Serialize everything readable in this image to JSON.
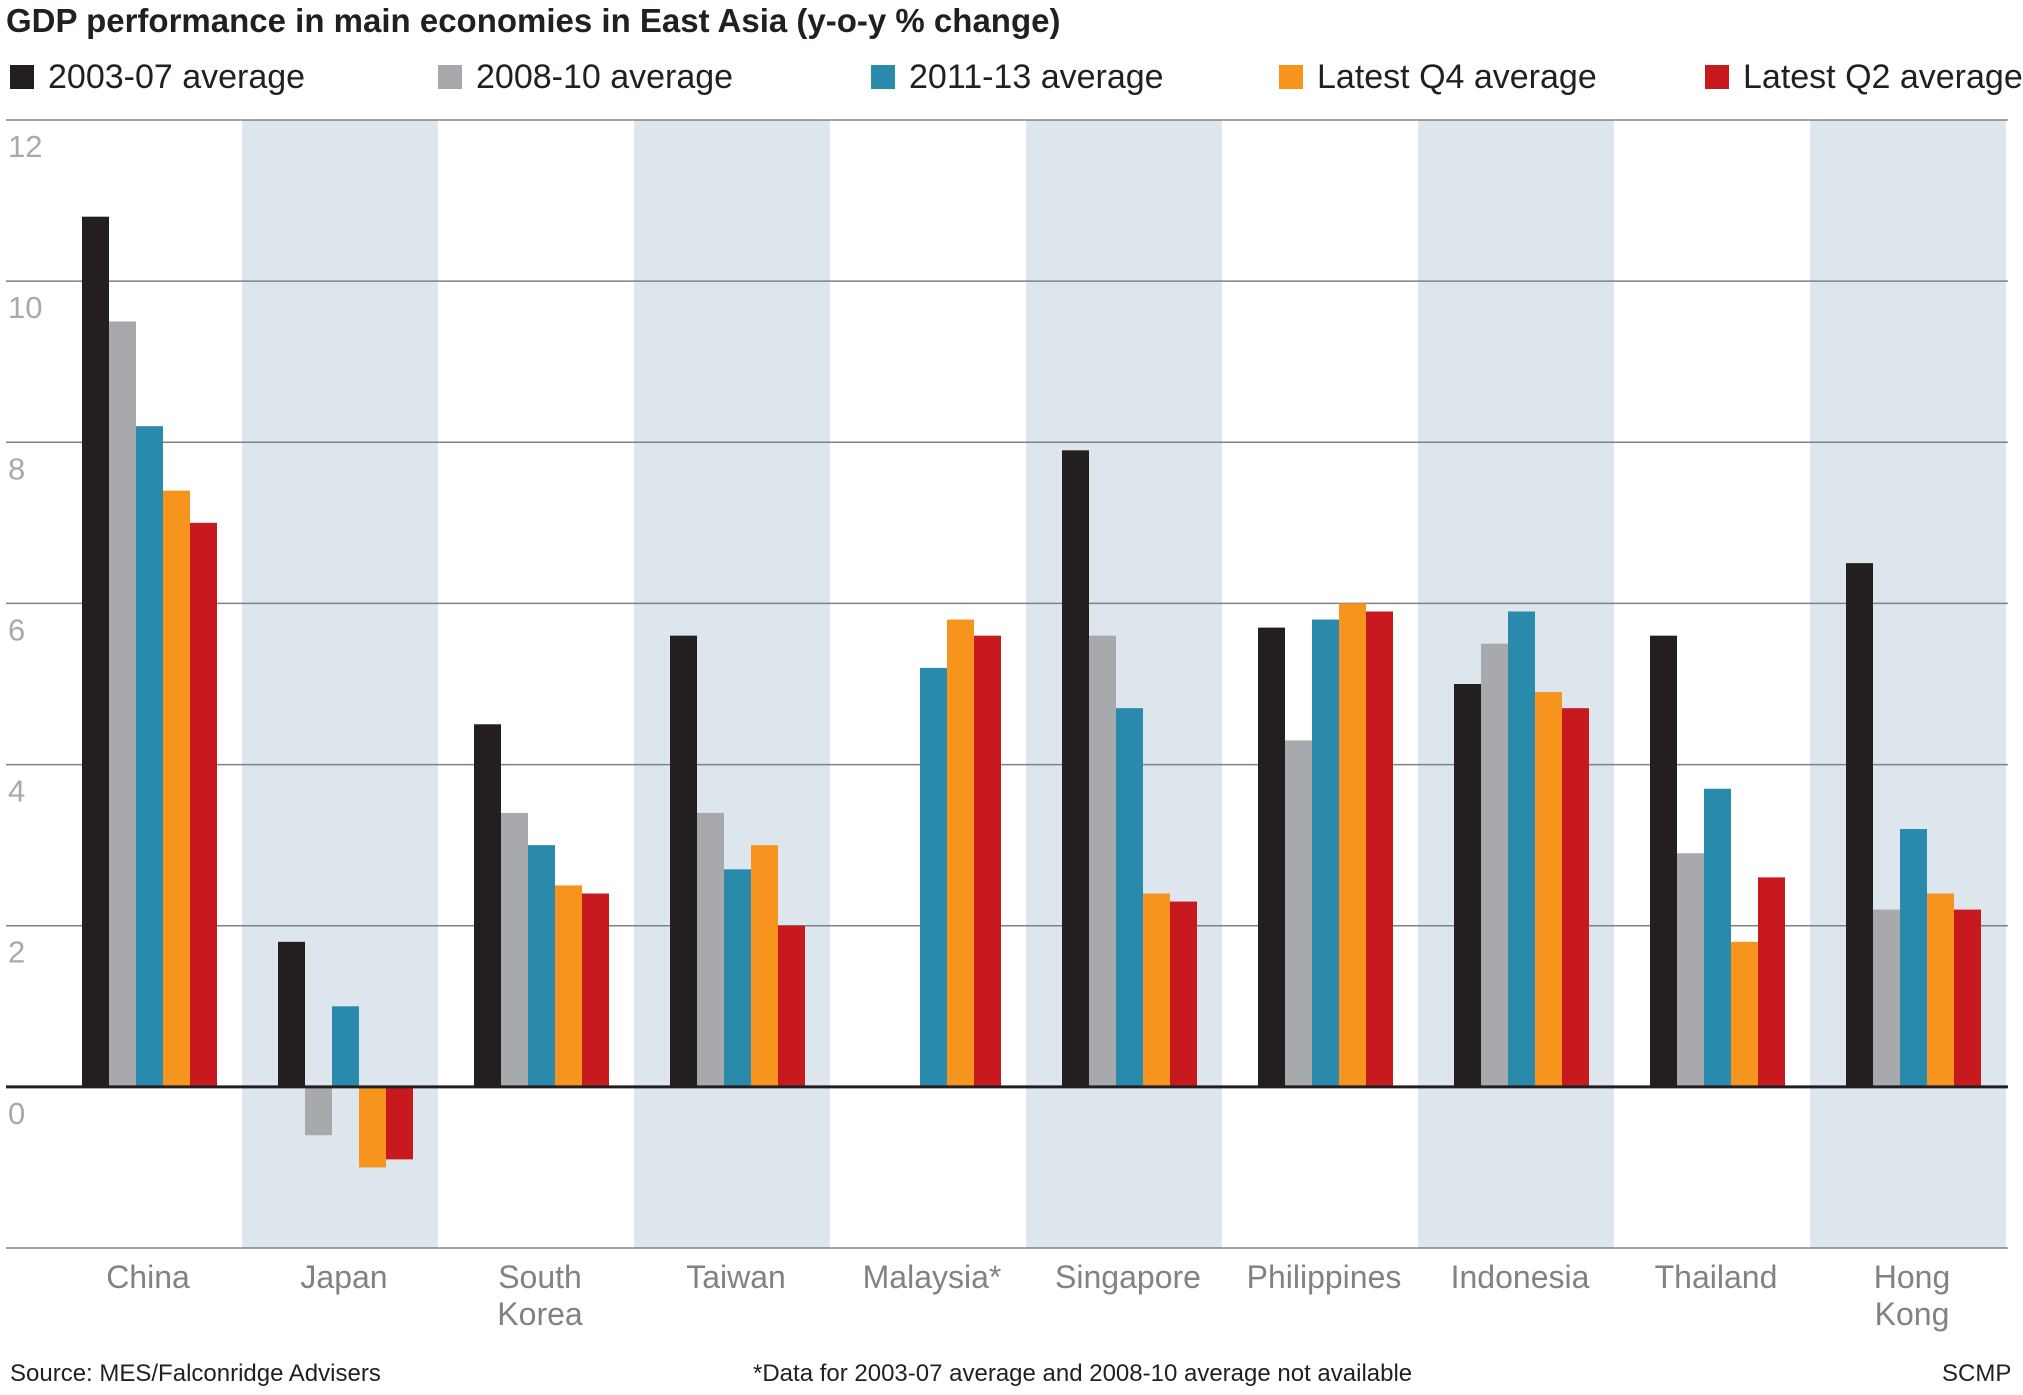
{
  "chart_data": {
    "type": "bar",
    "title": "GDP performance in main economies in East Asia (y-o-y % change)",
    "categories": [
      "China",
      "Japan",
      "South Korea",
      "Taiwan",
      "Malaysia*",
      "Singapore",
      "Philippines",
      "Indonesia",
      "Thailand",
      "Hong Kong"
    ],
    "category_lines": [
      [
        "China"
      ],
      [
        "Japan"
      ],
      [
        "South",
        "Korea"
      ],
      [
        "Taiwan"
      ],
      [
        "Malaysia*"
      ],
      [
        "Singapore"
      ],
      [
        "Philippines"
      ],
      [
        "Indonesia"
      ],
      [
        "Thailand"
      ],
      [
        "Hong",
        "Kong"
      ]
    ],
    "series": [
      {
        "name": "2003-07 average",
        "color": "#231f20",
        "values": [
          10.8,
          1.8,
          4.5,
          5.6,
          null,
          7.9,
          5.7,
          5.0,
          5.6,
          6.5
        ]
      },
      {
        "name": "2008-10 average",
        "color": "#a7a9ac",
        "values": [
          9.5,
          -0.6,
          3.4,
          3.4,
          null,
          5.6,
          4.3,
          5.5,
          2.9,
          2.2
        ]
      },
      {
        "name": "2011-13 average",
        "color": "#2a8aab",
        "values": [
          8.2,
          1.0,
          3.0,
          2.7,
          5.2,
          4.7,
          5.8,
          5.9,
          3.7,
          3.2
        ]
      },
      {
        "name": "Latest Q4 average",
        "color": "#f7941d",
        "values": [
          7.4,
          -1.0,
          2.5,
          3.0,
          5.8,
          2.4,
          6.0,
          4.9,
          1.8,
          2.4
        ]
      },
      {
        "name": "Latest Q2 average",
        "color": "#c8191f",
        "values": [
          7.0,
          -0.9,
          2.4,
          2.0,
          5.6,
          2.3,
          5.9,
          4.7,
          2.6,
          2.2
        ]
      }
    ],
    "yticks": [
      "0",
      "2",
      "4",
      "6",
      "8",
      "10",
      "12"
    ],
    "ylim": [
      -2,
      12
    ],
    "grid": true,
    "legend_position": "top",
    "band_color": "#dde6ed",
    "grid_color": "#808285",
    "zero_line_color": "#231f20",
    "tick_color": "#a7a9ac",
    "category_label_color": "#808285"
  },
  "footer": {
    "source": "Source: MES/Falconridge Advisers",
    "note": "*Data for 2003-07 average and 2008-10 average not available",
    "credit": "SCMP"
  }
}
